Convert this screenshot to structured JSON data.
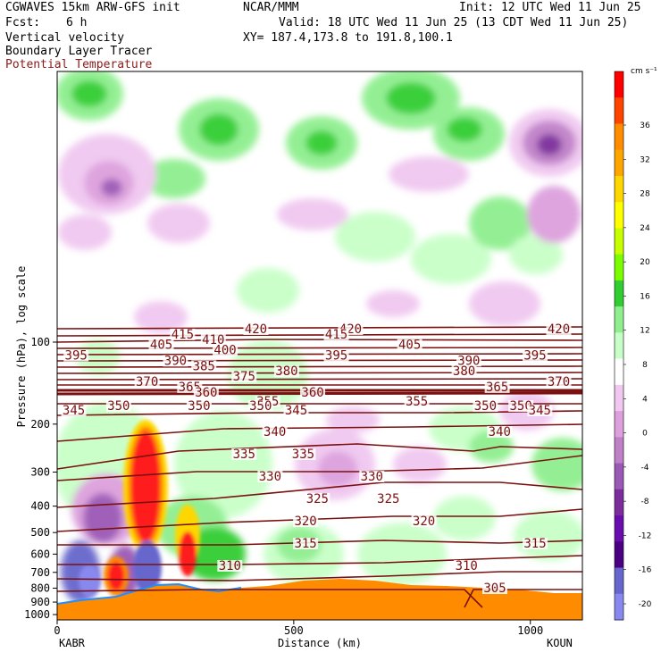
{
  "header": {
    "model": "CGWAVES 15km ARW-GFS init",
    "center": "NCAR/MMM",
    "init": "Init: 12 UTC Wed 11 Jun 25",
    "fcst_label": "Fcst:",
    "fcst_value": "6 h",
    "valid": "Valid: 18 UTC Wed 11 Jun 25 (13 CDT Wed 11 Jun 25)",
    "field1": "Vertical velocity",
    "field2": "Boundary Layer Tracer",
    "field3": "Potential Temperature",
    "xy": "XY= 187.4,173.8 to 191.8,100.1"
  },
  "colors": {
    "theta_contour": "#7a1010",
    "terrain": "#ff8c00",
    "updraft_strong": "#ff1a1a",
    "downdraft": "#9b59b6"
  },
  "chart_data": {
    "type": "cross-section",
    "xlabel": "Distance (km)",
    "ylabel": "Pressure (hPa), log scale",
    "x_ticks": [
      0,
      500,
      1000
    ],
    "xlim": [
      0,
      1110
    ],
    "y_ticks": [
      100,
      200,
      300,
      400,
      500,
      600,
      700,
      800,
      900,
      1000
    ],
    "y_scale": "log",
    "y_inverted": true,
    "x_endpoints": {
      "left": "KABR",
      "right": "KOUN"
    },
    "colorbar": {
      "unit": "cm s⁻¹",
      "ticks": [
        36,
        32,
        28,
        24,
        20,
        16,
        12,
        8,
        4,
        0,
        -4,
        -8,
        -12,
        -16,
        -20
      ],
      "colors": [
        "#ff0000",
        "#ff4400",
        "#ff8c00",
        "#ffa500",
        "#ffd700",
        "#ffff00",
        "#c8ff00",
        "#7cfc00",
        "#32cd32",
        "#8fef8f",
        "#c8ffc8",
        "#ffffff",
        "#f0c8f0",
        "#dda0dd",
        "#c080c8",
        "#9b59b6",
        "#7b2d9b",
        "#6a0dad",
        "#4b0082",
        "#6666cc",
        "#8888ee"
      ]
    },
    "isentropes": [
      {
        "theta": 420,
        "labels": [
          [
            420,
            420
          ],
          [
            620,
            420
          ],
          [
            1060,
            420
          ]
        ]
      },
      {
        "theta": 415,
        "labels": [
          [
            265,
            415
          ],
          [
            590,
            415
          ]
        ]
      },
      {
        "theta": 410,
        "labels": [
          [
            330,
            410
          ]
        ]
      },
      {
        "theta": 405,
        "labels": [
          [
            220,
            405
          ],
          [
            745,
            405
          ]
        ]
      },
      {
        "theta": 400,
        "labels": [
          [
            355,
            400
          ]
        ]
      },
      {
        "theta": 395,
        "labels": [
          [
            40,
            395
          ],
          [
            590,
            395
          ],
          [
            1010,
            395
          ]
        ]
      },
      {
        "theta": 390,
        "labels": [
          [
            250,
            390
          ],
          [
            870,
            390
          ]
        ]
      },
      {
        "theta": 385,
        "labels": [
          [
            310,
            385
          ]
        ]
      },
      {
        "theta": 380,
        "labels": [
          [
            485,
            380
          ],
          [
            860,
            380
          ]
        ]
      },
      {
        "theta": 375,
        "labels": [
          [
            395,
            375
          ]
        ]
      },
      {
        "theta": 370,
        "labels": [
          [
            190,
            370
          ],
          [
            1060,
            370
          ]
        ]
      },
      {
        "theta": 365,
        "labels": [
          [
            280,
            365
          ],
          [
            930,
            365
          ]
        ]
      },
      {
        "theta": 360,
        "labels": [
          [
            315,
            360
          ],
          [
            540,
            360
          ]
        ]
      },
      {
        "theta": 355,
        "labels": [
          [
            445,
            355
          ],
          [
            760,
            355
          ]
        ]
      },
      {
        "theta": 350,
        "labels": [
          [
            130,
            350
          ],
          [
            300,
            350
          ],
          [
            430,
            350
          ],
          [
            905,
            350
          ],
          [
            980,
            350
          ]
        ]
      },
      {
        "theta": 345,
        "labels": [
          [
            35,
            345
          ],
          [
            505,
            345
          ],
          [
            1020,
            345
          ]
        ]
      },
      {
        "theta": 340,
        "labels": [
          [
            460,
            340
          ],
          [
            935,
            340
          ]
        ]
      },
      {
        "theta": 335,
        "labels": [
          [
            395,
            335
          ],
          [
            520,
            335
          ]
        ]
      },
      {
        "theta": 330,
        "labels": [
          [
            450,
            330
          ],
          [
            665,
            330
          ]
        ]
      },
      {
        "theta": 325,
        "labels": [
          [
            550,
            325
          ],
          [
            700,
            325
          ]
        ]
      },
      {
        "theta": 320,
        "labels": [
          [
            525,
            320
          ],
          [
            775,
            320
          ]
        ]
      },
      {
        "theta": 315,
        "labels": [
          [
            525,
            315
          ],
          [
            1010,
            315
          ]
        ]
      },
      {
        "theta": 310,
        "labels": [
          [
            365,
            310
          ],
          [
            865,
            310
          ]
        ]
      },
      {
        "theta": 305,
        "labels": [
          [
            925,
            305
          ]
        ]
      }
    ]
  }
}
